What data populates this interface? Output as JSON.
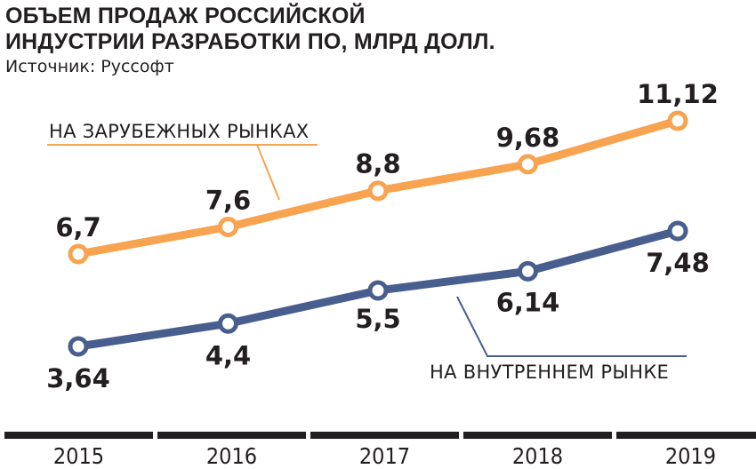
{
  "title": {
    "line1": "ОБЪЕМ ПРОДАЖ РОССИЙСКОЙ",
    "line2": "ИНДУСТРИИ РАЗРАБОТКИ ПО, МЛРД ДОЛЛ."
  },
  "source": "Источник: Руссофт",
  "chart_data": {
    "type": "line",
    "categories": [
      "2015",
      "2016",
      "2017",
      "2018",
      "2019"
    ],
    "series": [
      {
        "name": "НА ЗАРУБЕЖНЫХ РЫНКАХ",
        "values": [
          6.7,
          7.6,
          8.8,
          9.68,
          11.12
        ],
        "labels": [
          "6,7",
          "7,6",
          "8,8",
          "9,68",
          "11,12"
        ],
        "color": "#f7a350"
      },
      {
        "name": "НА ВНУТРЕННЕМ РЫНКЕ",
        "values": [
          3.64,
          4.4,
          5.5,
          6.14,
          7.48
        ],
        "labels": [
          "3,64",
          "4,4",
          "5,5",
          "6,14",
          "7,48"
        ],
        "color": "#475e8e"
      }
    ],
    "xlabel": "",
    "ylabel": "",
    "grid": false,
    "axis_color": "#231f20"
  }
}
